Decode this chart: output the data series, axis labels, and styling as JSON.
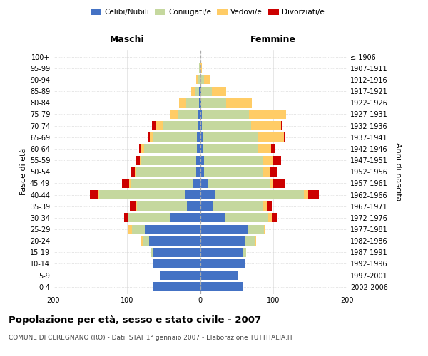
{
  "age_groups": [
    "0-4",
    "5-9",
    "10-14",
    "15-19",
    "20-24",
    "25-29",
    "30-34",
    "35-39",
    "40-44",
    "45-49",
    "50-54",
    "55-59",
    "60-64",
    "65-69",
    "70-74",
    "75-79",
    "80-84",
    "85-89",
    "90-94",
    "95-99",
    "100+"
  ],
  "birth_years": [
    "2002-2006",
    "1997-2001",
    "1992-1996",
    "1987-1991",
    "1982-1986",
    "1977-1981",
    "1972-1976",
    "1967-1971",
    "1962-1966",
    "1957-1961",
    "1952-1956",
    "1947-1951",
    "1942-1946",
    "1937-1941",
    "1932-1936",
    "1927-1931",
    "1922-1926",
    "1917-1921",
    "1912-1916",
    "1907-1911",
    "≤ 1906"
  ],
  "male_celibe": [
    65,
    55,
    65,
    65,
    70,
    75,
    40,
    18,
    20,
    10,
    5,
    5,
    4,
    4,
    3,
    2,
    1,
    1,
    0,
    0,
    0
  ],
  "male_coniugato": [
    0,
    0,
    0,
    3,
    8,
    18,
    58,
    68,
    118,
    85,
    82,
    75,
    72,
    60,
    48,
    28,
    18,
    6,
    3,
    1,
    0
  ],
  "male_vedovo": [
    0,
    0,
    0,
    0,
    2,
    5,
    1,
    2,
    2,
    2,
    2,
    2,
    5,
    5,
    10,
    10,
    10,
    5,
    2,
    0,
    0
  ],
  "male_divorziato": [
    0,
    0,
    0,
    0,
    0,
    0,
    5,
    8,
    10,
    10,
    5,
    6,
    2,
    2,
    5,
    0,
    0,
    0,
    0,
    0,
    0
  ],
  "fem_nubile": [
    58,
    52,
    62,
    58,
    62,
    65,
    35,
    18,
    20,
    10,
    5,
    5,
    4,
    4,
    2,
    2,
    1,
    1,
    0,
    0,
    0
  ],
  "fem_coniugata": [
    0,
    0,
    0,
    5,
    12,
    22,
    58,
    68,
    122,
    85,
    80,
    80,
    75,
    75,
    68,
    65,
    35,
    15,
    5,
    0,
    0
  ],
  "fem_vedova": [
    0,
    0,
    0,
    0,
    2,
    2,
    5,
    5,
    5,
    5,
    10,
    15,
    18,
    35,
    40,
    50,
    35,
    20,
    8,
    2,
    0
  ],
  "fem_divorziata": [
    0,
    0,
    0,
    0,
    0,
    0,
    8,
    8,
    15,
    15,
    10,
    10,
    5,
    2,
    2,
    0,
    0,
    0,
    0,
    0,
    0
  ],
  "colors_celibe": "#4472C4",
  "colors_coniugato": "#C5D89E",
  "colors_vedovo": "#FFCC66",
  "colors_divorziato": "#CC0000",
  "legend_labels": [
    "Celibi/Nubili",
    "Coniugati/e",
    "Vedovi/e",
    "Divorziati/e"
  ],
  "title": "Popolazione per età, sesso e stato civile - 2007",
  "subtitle": "COMUNE DI CEREGNANO (RO) - Dati ISTAT 1° gennaio 2007 - Elaborazione TUTTITALIA.IT",
  "label_maschi": "Maschi",
  "label_femmine": "Femmine",
  "label_fasce": "Fasce di età",
  "label_anni": "Anni di nascita",
  "xlim": 200,
  "bg_color": "#ffffff"
}
